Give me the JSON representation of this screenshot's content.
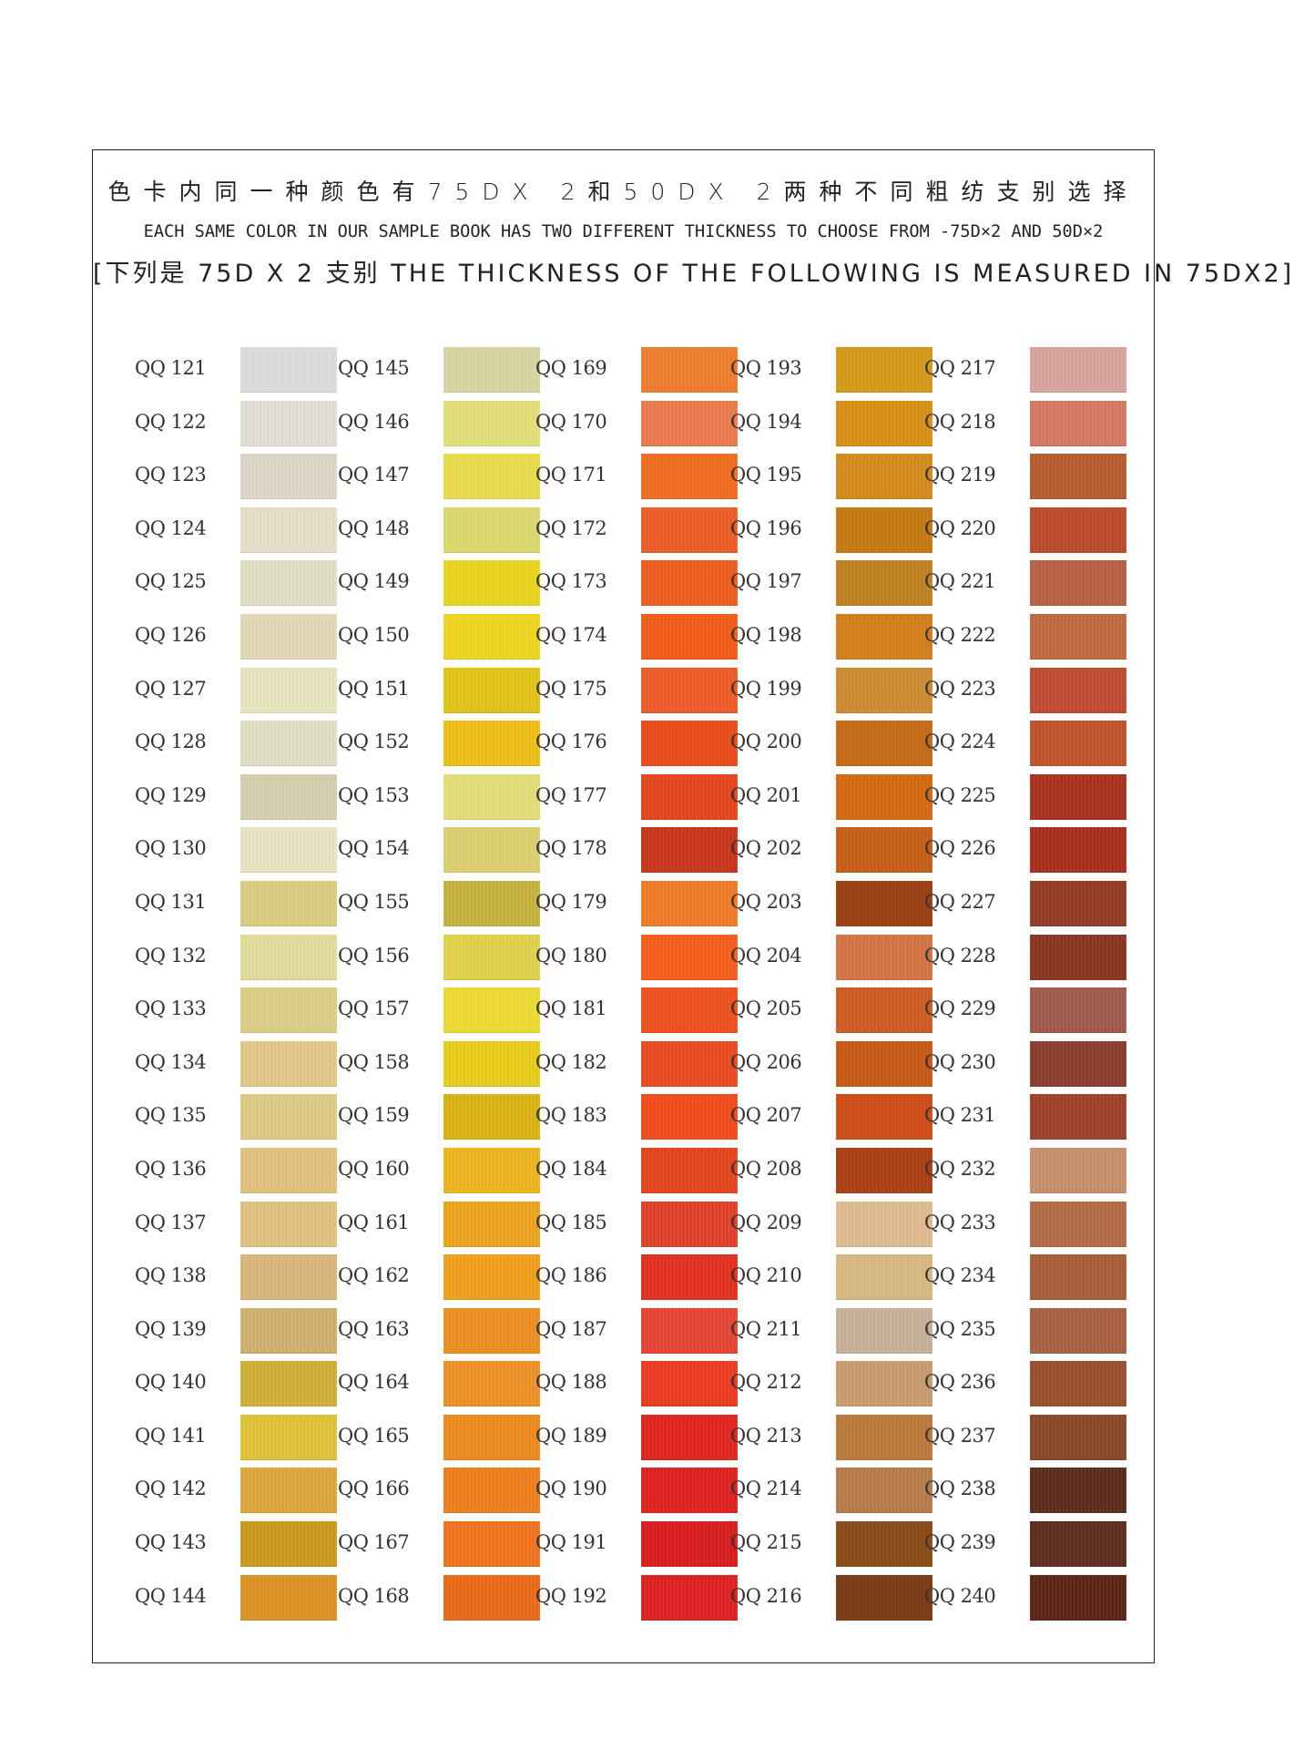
{
  "header": {
    "line_zh": "色卡内同一种颜色有75DX 2和50DX 2两种不同粗纺支别选择",
    "line_en": "EACH SAME COLOR IN OUR SAMPLE BOOK HAS TWO DIFFERENT THICKNESS TO CHOOSE FROM -75D×2 AND 50D×2",
    "line_sub": "[下列是 75D X 2 支别 THE THICKNESS OF THE FOLLOWING IS MEASURED IN 75DX2]"
  },
  "columns": [
    {
      "items": [
        {
          "code": "QQ 121",
          "color": "#dedddb"
        },
        {
          "code": "QQ 122",
          "color": "#e3dfd6"
        },
        {
          "code": "QQ 123",
          "color": "#ddd7c8"
        },
        {
          "code": "QQ 124",
          "color": "#e6dfc8"
        },
        {
          "code": "QQ 125",
          "color": "#e2e0c6"
        },
        {
          "code": "QQ 126",
          "color": "#e3d9b5"
        },
        {
          "code": "QQ 127",
          "color": "#e8e6c0"
        },
        {
          "code": "QQ 128",
          "color": "#e1dfc4"
        },
        {
          "code": "QQ 129",
          "color": "#d5cfaf"
        },
        {
          "code": "QQ 130",
          "color": "#ebe3c2"
        },
        {
          "code": "QQ 131",
          "color": "#dccd82"
        },
        {
          "code": "QQ 132",
          "color": "#e1dc9a"
        },
        {
          "code": "QQ 133",
          "color": "#dccf86"
        },
        {
          "code": "QQ 134",
          "color": "#e2c987"
        },
        {
          "code": "QQ 135",
          "color": "#e0cc84"
        },
        {
          "code": "QQ 136",
          "color": "#e2c27d"
        },
        {
          "code": "QQ 137",
          "color": "#e4c37f"
        },
        {
          "code": "QQ 138",
          "color": "#d9b77c"
        },
        {
          "code": "QQ 139",
          "color": "#cfb06c"
        },
        {
          "code": "QQ 140",
          "color": "#d1af36"
        },
        {
          "code": "QQ 141",
          "color": "#e1c234"
        },
        {
          "code": "QQ 142",
          "color": "#dea73a"
        },
        {
          "code": "QQ 143",
          "color": "#cc9a1c"
        },
        {
          "code": "QQ 144",
          "color": "#dd9426"
        }
      ]
    },
    {
      "items": [
        {
          "code": "QQ 145",
          "color": "#d8d6a2"
        },
        {
          "code": "QQ 146",
          "color": "#e3e076"
        },
        {
          "code": "QQ 147",
          "color": "#eadd4a"
        },
        {
          "code": "QQ 148",
          "color": "#dcda6c"
        },
        {
          "code": "QQ 149",
          "color": "#ecd61d"
        },
        {
          "code": "QQ 150",
          "color": "#efd61e"
        },
        {
          "code": "QQ 151",
          "color": "#e2c516"
        },
        {
          "code": "QQ 152",
          "color": "#f0c015"
        },
        {
          "code": "QQ 153",
          "color": "#e3de76"
        },
        {
          "code": "QQ 154",
          "color": "#dcd070"
        },
        {
          "code": "QQ 155",
          "color": "#c7b33c"
        },
        {
          "code": "QQ 156",
          "color": "#e2d34a"
        },
        {
          "code": "QQ 157",
          "color": "#eedb32"
        },
        {
          "code": "QQ 158",
          "color": "#e9cd19"
        },
        {
          "code": "QQ 159",
          "color": "#d9b310"
        },
        {
          "code": "QQ 160",
          "color": "#eeb51c"
        },
        {
          "code": "QQ 161",
          "color": "#eea31a"
        },
        {
          "code": "QQ 162",
          "color": "#f19f1a"
        },
        {
          "code": "QQ 163",
          "color": "#ed8f1f"
        },
        {
          "code": "QQ 164",
          "color": "#ee9225"
        },
        {
          "code": "QQ 165",
          "color": "#ee8a1c"
        },
        {
          "code": "QQ 166",
          "color": "#f07d1a"
        },
        {
          "code": "QQ 167",
          "color": "#f1731a"
        },
        {
          "code": "QQ 168",
          "color": "#ec6a16"
        }
      ]
    },
    {
      "items": [
        {
          "code": "QQ 169",
          "color": "#ef7c2c"
        },
        {
          "code": "QQ 170",
          "color": "#ec7a4c"
        },
        {
          "code": "QQ 171",
          "color": "#f26c1e"
        },
        {
          "code": "QQ 172",
          "color": "#ef5d26"
        },
        {
          "code": "QQ 173",
          "color": "#ee5c1e"
        },
        {
          "code": "QQ 174",
          "color": "#f25c15"
        },
        {
          "code": "QQ 175",
          "color": "#ef5a26"
        },
        {
          "code": "QQ 176",
          "color": "#ec4a1a"
        },
        {
          "code": "QQ 177",
          "color": "#e5461c"
        },
        {
          "code": "QQ 178",
          "color": "#c8341a"
        },
        {
          "code": "QQ 179",
          "color": "#f27a26"
        },
        {
          "code": "QQ 180",
          "color": "#f75c1a"
        },
        {
          "code": "QQ 181",
          "color": "#f0501c"
        },
        {
          "code": "QQ 182",
          "color": "#ec4a20"
        },
        {
          "code": "QQ 183",
          "color": "#f24a18"
        },
        {
          "code": "QQ 184",
          "color": "#e5441e"
        },
        {
          "code": "QQ 185",
          "color": "#e1402a"
        },
        {
          "code": "QQ 186",
          "color": "#e4301e"
        },
        {
          "code": "QQ 187",
          "color": "#e64432"
        },
        {
          "code": "QQ 188",
          "color": "#ec3a20"
        },
        {
          "code": "QQ 189",
          "color": "#e2241e"
        },
        {
          "code": "QQ 190",
          "color": "#e0201e"
        },
        {
          "code": "QQ 191",
          "color": "#da1c1c"
        },
        {
          "code": "QQ 192",
          "color": "#de2020"
        }
      ]
    },
    {
      "items": [
        {
          "code": "QQ 193",
          "color": "#d69a18"
        },
        {
          "code": "QQ 194",
          "color": "#d88e12"
        },
        {
          "code": "QQ 195",
          "color": "#d48a1c"
        },
        {
          "code": "QQ 196",
          "color": "#c77a10"
        },
        {
          "code": "QQ 197",
          "color": "#bf8220"
        },
        {
          "code": "QQ 198",
          "color": "#d47e1a"
        },
        {
          "code": "QQ 199",
          "color": "#cf8a32"
        },
        {
          "code": "QQ 200",
          "color": "#c86a16"
        },
        {
          "code": "QQ 201",
          "color": "#d56a12"
        },
        {
          "code": "QQ 202",
          "color": "#c85e16"
        },
        {
          "code": "QQ 203",
          "color": "#9a4012"
        },
        {
          "code": "QQ 204",
          "color": "#d57444"
        },
        {
          "code": "QQ 205",
          "color": "#cf5a20"
        },
        {
          "code": "QQ 206",
          "color": "#c85818"
        },
        {
          "code": "QQ 207",
          "color": "#cf4c16"
        },
        {
          "code": "QQ 208",
          "color": "#ad3e12"
        },
        {
          "code": "QQ 209",
          "color": "#e2bb90"
        },
        {
          "code": "QQ 210",
          "color": "#d7b880"
        },
        {
          "code": "QQ 211",
          "color": "#c8b098"
        },
        {
          "code": "QQ 212",
          "color": "#c99c70"
        },
        {
          "code": "QQ 213",
          "color": "#bc7a3a"
        },
        {
          "code": "QQ 214",
          "color": "#b67c48"
        },
        {
          "code": "QQ 215",
          "color": "#8a4a16"
        },
        {
          "code": "QQ 216",
          "color": "#7a3a12"
        }
      ]
    },
    {
      "items": [
        {
          "code": "QQ 217",
          "color": "#d9a49a"
        },
        {
          "code": "QQ 218",
          "color": "#d57a5e"
        },
        {
          "code": "QQ 219",
          "color": "#b85a30"
        },
        {
          "code": "QQ 220",
          "color": "#bc4a2a"
        },
        {
          "code": "QQ 221",
          "color": "#b85e42"
        },
        {
          "code": "QQ 222",
          "color": "#c0683e"
        },
        {
          "code": "QQ 223",
          "color": "#c04a32"
        },
        {
          "code": "QQ 224",
          "color": "#c0522c"
        },
        {
          "code": "QQ 225",
          "color": "#a8301e"
        },
        {
          "code": "QQ 226",
          "color": "#a82e1c"
        },
        {
          "code": "QQ 227",
          "color": "#953a22"
        },
        {
          "code": "QQ 228",
          "color": "#8a3420"
        },
        {
          "code": "QQ 229",
          "color": "#a0584a"
        },
        {
          "code": "QQ 230",
          "color": "#8a3a2a"
        },
        {
          "code": "QQ 231",
          "color": "#9e4028"
        },
        {
          "code": "QQ 232",
          "color": "#c8906a"
        },
        {
          "code": "QQ 233",
          "color": "#b46a46"
        },
        {
          "code": "QQ 234",
          "color": "#a85c38"
        },
        {
          "code": "QQ 235",
          "color": "#a8603e"
        },
        {
          "code": "QQ 236",
          "color": "#9a4e2c"
        },
        {
          "code": "QQ 237",
          "color": "#8a4628"
        },
        {
          "code": "QQ 238",
          "color": "#5a2a1a"
        },
        {
          "code": "QQ 239",
          "color": "#5a2c1c"
        },
        {
          "code": "QQ 240",
          "color": "#5a2414"
        }
      ]
    }
  ]
}
